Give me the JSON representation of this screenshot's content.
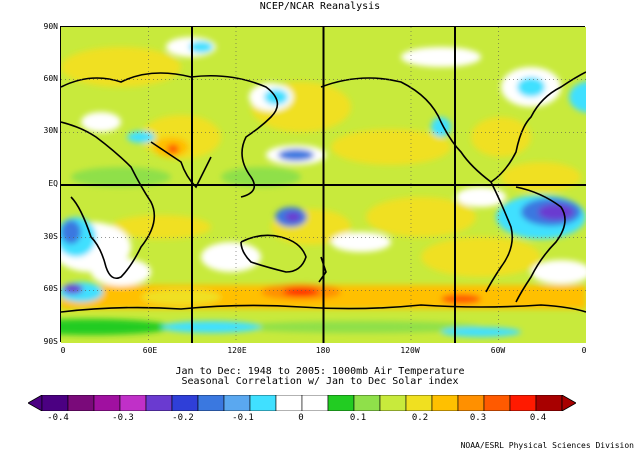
{
  "title": "NCEP/NCAR Reanalysis",
  "map": {
    "lat_labels": [
      "90N",
      "60N",
      "30N",
      "EQ",
      "30S",
      "60S",
      "90S"
    ],
    "lon_labels": [
      "0",
      "60E",
      "120E",
      "180",
      "120W",
      "60W",
      "0"
    ],
    "projection": "cylindrical equidistant",
    "center_longitude": 180,
    "grid": "dotted"
  },
  "caption_line1": "Jan to Dec: 1948 to 2005: 1000mb Air Temperature",
  "caption_line2": "Seasonal Correlation w/ Jan to Dec Solar index",
  "colorbar": {
    "labels": [
      "-0.4",
      "-0.3",
      "-0.2",
      "-0.1",
      "0",
      "0.1",
      "0.2",
      "0.3",
      "0.4"
    ],
    "colors": [
      "#4b0082",
      "#7a0a7a",
      "#a010a0",
      "#c030c8",
      "#6a3ad0",
      "#2f3fd8",
      "#3a78e0",
      "#5aa8f0",
      "#40e0ff",
      "#ffffff",
      "#ffffff",
      "#22cc22",
      "#8fe04a",
      "#c8ea3c",
      "#f0e020",
      "#ffc000",
      "#ff9000",
      "#ff5a00",
      "#ff1a00",
      "#a80000"
    ],
    "range": [
      -0.4,
      0.4
    ]
  },
  "credit": "NOAA/ESRL Physical Sciences Division"
}
